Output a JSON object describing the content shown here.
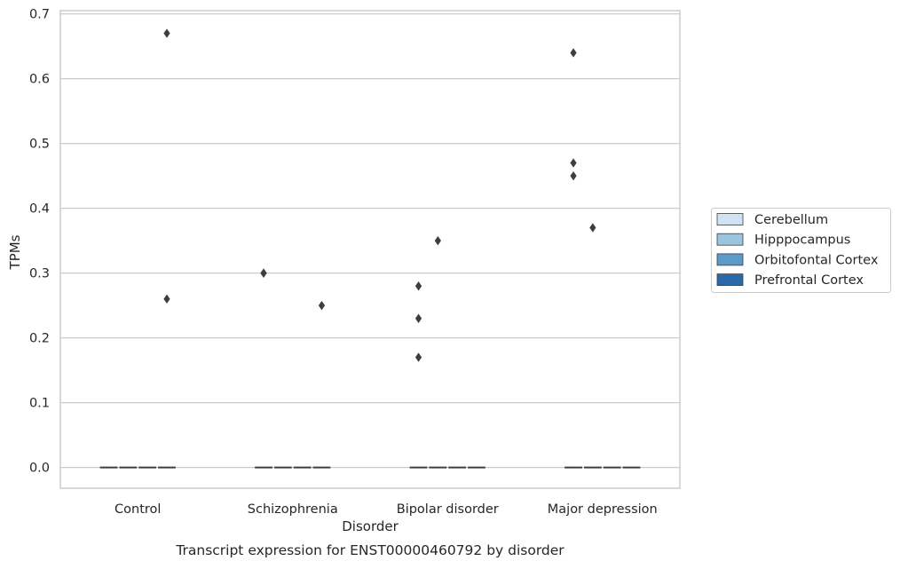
{
  "chart_data": {
    "type": "box",
    "title": "Transcript expression for ENST00000460792 by disorder",
    "xlabel": "Disorder",
    "ylabel": "TPMs",
    "categories": [
      "Control",
      "Schizophrenia",
      "Bipolar disorder",
      "Major depression"
    ],
    "ylim": [
      -0.032,
      0.705
    ],
    "yticks": [
      "0.0",
      "0.1",
      "0.2",
      "0.3",
      "0.4",
      "0.5",
      "0.6",
      "0.7"
    ],
    "grid": "horizontal",
    "legend_position": "right",
    "series": [
      {
        "name": "Cerebellum",
        "color": "#d1e2f2"
      },
      {
        "name": "Hipppocampus",
        "color": "#9dc4df"
      },
      {
        "name": "Orbitofontal Cortex",
        "color": "#5a9bc9"
      },
      {
        "name": "Prefrontal Cortex",
        "color": "#2a6aab"
      }
    ],
    "medians": [
      0,
      0,
      0,
      0
    ],
    "outliers": [
      {
        "category": "Control",
        "series": "Prefrontal Cortex",
        "value": 0.67
      },
      {
        "category": "Control",
        "series": "Prefrontal Cortex",
        "value": 0.26
      },
      {
        "category": "Schizophrenia",
        "series": "Cerebellum",
        "value": 0.3
      },
      {
        "category": "Schizophrenia",
        "series": "Cerebellum",
        "value": 0.3
      },
      {
        "category": "Schizophrenia",
        "series": "Prefrontal Cortex",
        "value": 0.25
      },
      {
        "category": "Bipolar disorder",
        "series": "Cerebellum",
        "value": 0.28
      },
      {
        "category": "Bipolar disorder",
        "series": "Cerebellum",
        "value": 0.23
      },
      {
        "category": "Bipolar disorder",
        "series": "Cerebellum",
        "value": 0.17
      },
      {
        "category": "Bipolar disorder",
        "series": "Hipppocampus",
        "value": 0.35
      },
      {
        "category": "Major depression",
        "series": "Cerebellum",
        "value": 0.64
      },
      {
        "category": "Major depression",
        "series": "Cerebellum",
        "value": 0.47
      },
      {
        "category": "Major depression",
        "series": "Cerebellum",
        "value": 0.45
      },
      {
        "category": "Major depression",
        "series": "Hipppocampus",
        "value": 0.37
      }
    ]
  }
}
